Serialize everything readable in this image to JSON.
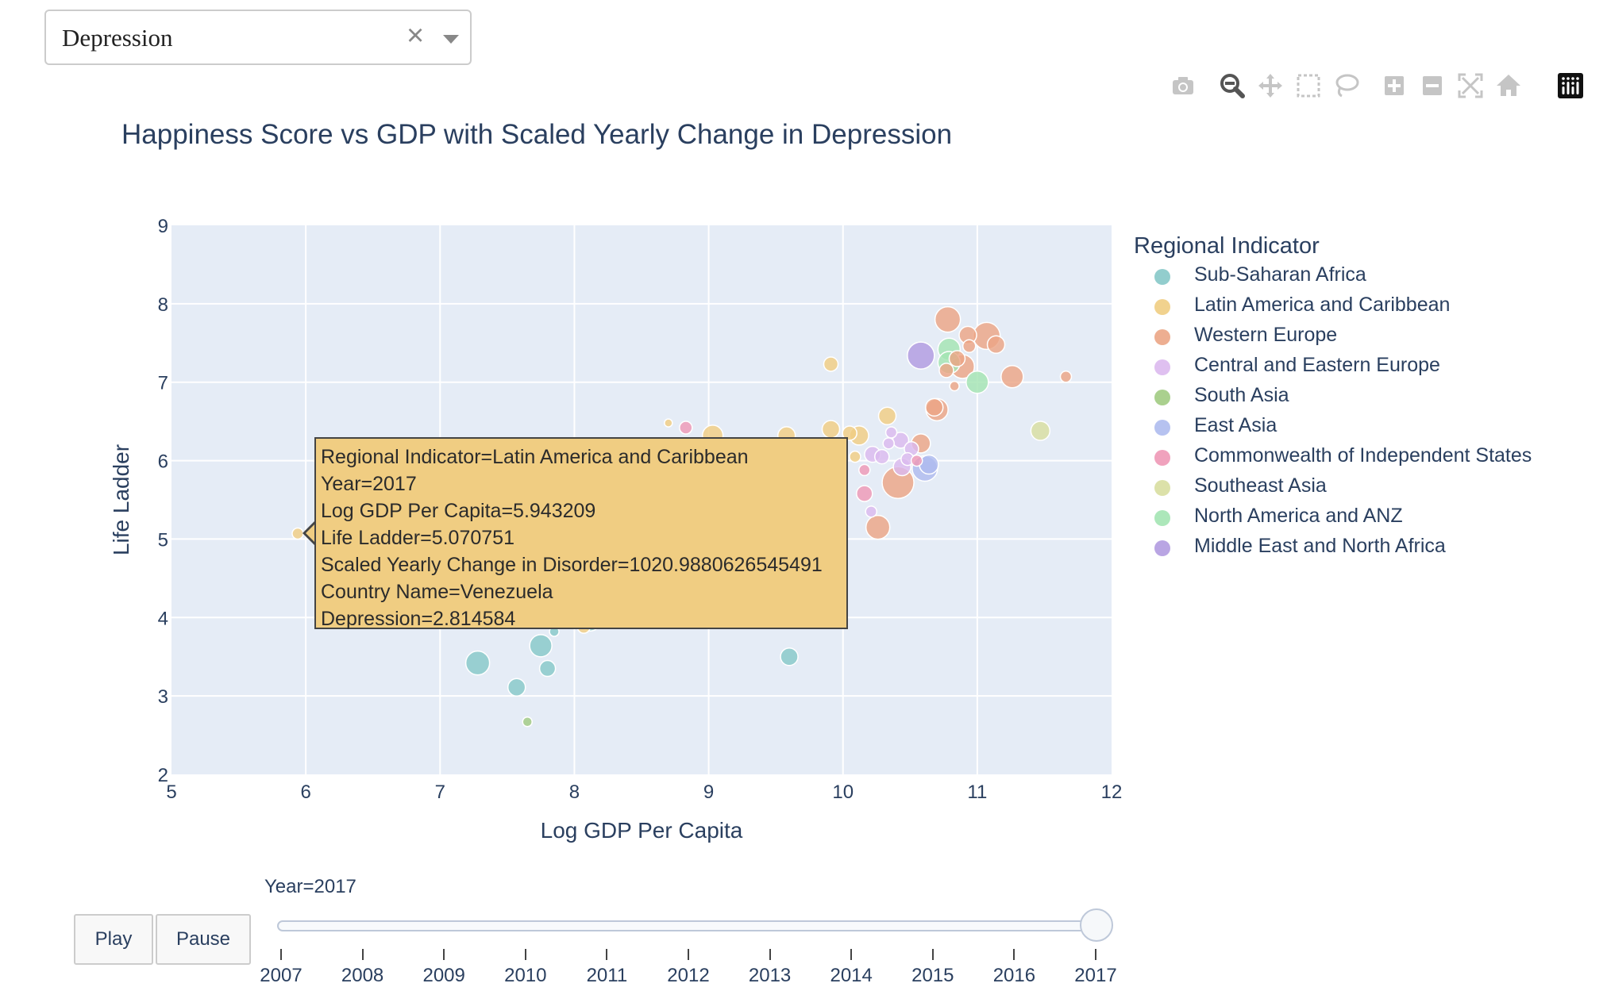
{
  "dropdown": {
    "value": "Depression"
  },
  "modebar": [
    "camera-icon",
    "zoom-icon",
    "pan-icon",
    "box-select-icon",
    "lasso-select-icon",
    "zoom-in-icon",
    "zoom-out-icon",
    "autoscale-icon",
    "reset-axes-icon",
    "plotly-logo-icon"
  ],
  "colors": {
    "Sub-Saharan Africa": "#86c8c8",
    "Latin America and Caribbean": "#f0cd82",
    "Western Europe": "#eba585",
    "Central and Eastern Europe": "#dbb9ee",
    "South Asia": "#a1cb82",
    "East Asia": "#aebbee",
    "Commonwealth of Independent States": "#ee98b6",
    "Southeast Asia": "#d8dea0",
    "North America and ANZ": "#a3e4b2",
    "Middle East and North Africa": "#b19be0"
  },
  "legend": {
    "title": "Regional Indicator",
    "items": [
      "Sub-Saharan Africa",
      "Latin America and Caribbean",
      "Western Europe",
      "Central and Eastern Europe",
      "South Asia",
      "East Asia",
      "Commonwealth of Independent States",
      "Southeast Asia",
      "North America and ANZ",
      "Middle East and North Africa"
    ]
  },
  "tooltip": {
    "lines": [
      "Regional Indicator=Latin America and Caribbean",
      "Year=2017",
      "Log GDP Per Capita=5.943209",
      "Life Ladder=5.070751",
      "Scaled Yearly Change in Disorder=1020.9880626545491",
      "Country Name=Venezuela",
      "Depression=2.814584"
    ]
  },
  "controls": {
    "play": "Play",
    "pause": "Pause"
  },
  "slider": {
    "label": "Year=2017",
    "years": [
      "2007",
      "2008",
      "2009",
      "2010",
      "2011",
      "2012",
      "2013",
      "2014",
      "2015",
      "2016",
      "2017"
    ],
    "selected": "2017"
  },
  "chart_data": {
    "type": "scatter",
    "title": "Happiness Score vs GDP with Scaled Yearly Change in Depression",
    "xlabel": "Log GDP Per Capita",
    "ylabel": "Life Ladder",
    "xlim": [
      5,
      12
    ],
    "ylim": [
      2,
      9
    ],
    "xticks": [
      5,
      6,
      7,
      8,
      9,
      10,
      11,
      12
    ],
    "yticks": [
      2,
      3,
      4,
      5,
      6,
      7,
      8,
      9
    ],
    "grid": true,
    "legend_position": "right",
    "points": [
      {
        "region": "Sub-Saharan Africa",
        "x": 7.28,
        "y": 3.42,
        "s": 15
      },
      {
        "region": "Sub-Saharan Africa",
        "x": 7.57,
        "y": 3.11,
        "s": 11
      },
      {
        "region": "Sub-Saharan Africa",
        "x": 7.75,
        "y": 3.64,
        "s": 14
      },
      {
        "region": "Sub-Saharan Africa",
        "x": 7.8,
        "y": 3.35,
        "s": 10
      },
      {
        "region": "Sub-Saharan Africa",
        "x": 7.85,
        "y": 3.82,
        "s": 6
      },
      {
        "region": "Sub-Saharan Africa",
        "x": 7.65,
        "y": 4.05,
        "s": 8
      },
      {
        "region": "Sub-Saharan Africa",
        "x": 8.12,
        "y": 3.95,
        "s": 12
      },
      {
        "region": "Sub-Saharan Africa",
        "x": 9.6,
        "y": 3.5,
        "s": 11
      },
      {
        "region": "South Asia",
        "x": 7.65,
        "y": 2.67,
        "s": 6
      },
      {
        "region": "Latin America and Caribbean",
        "x": 5.94,
        "y": 5.07,
        "s": 7
      },
      {
        "region": "Latin America and Caribbean",
        "x": 8.07,
        "y": 3.88,
        "s": 8
      },
      {
        "region": "Latin America and Caribbean",
        "x": 8.7,
        "y": 6.48,
        "s": 5
      },
      {
        "region": "Latin America and Caribbean",
        "x": 9.03,
        "y": 6.32,
        "s": 13
      },
      {
        "region": "Latin America and Caribbean",
        "x": 9.58,
        "y": 6.32,
        "s": 11
      },
      {
        "region": "Latin America and Caribbean",
        "x": 9.91,
        "y": 6.4,
        "s": 11
      },
      {
        "region": "Latin America and Caribbean",
        "x": 10.05,
        "y": 6.35,
        "s": 9
      },
      {
        "region": "Latin America and Caribbean",
        "x": 10.12,
        "y": 6.32,
        "s": 12
      },
      {
        "region": "Latin America and Caribbean",
        "x": 10.33,
        "y": 6.57,
        "s": 11
      },
      {
        "region": "Latin America and Caribbean",
        "x": 9.91,
        "y": 7.23,
        "s": 9
      },
      {
        "region": "Latin America and Caribbean",
        "x": 10.09,
        "y": 6.05,
        "s": 7
      },
      {
        "region": "Commonwealth of Independent States",
        "x": 8.83,
        "y": 6.42,
        "s": 8
      },
      {
        "region": "Commonwealth of Independent States",
        "x": 10.16,
        "y": 5.88,
        "s": 7
      },
      {
        "region": "Commonwealth of Independent States",
        "x": 10.16,
        "y": 5.58,
        "s": 10
      },
      {
        "region": "Commonwealth of Independent States",
        "x": 10.55,
        "y": 6.0,
        "s": 7
      },
      {
        "region": "Central and Eastern Europe",
        "x": 10.22,
        "y": 6.08,
        "s": 10
      },
      {
        "region": "Central and Eastern Europe",
        "x": 10.29,
        "y": 6.05,
        "s": 9
      },
      {
        "region": "Central and Eastern Europe",
        "x": 10.34,
        "y": 6.22,
        "s": 7
      },
      {
        "region": "Central and Eastern Europe",
        "x": 10.36,
        "y": 6.36,
        "s": 7
      },
      {
        "region": "Central and Eastern Europe",
        "x": 10.43,
        "y": 6.26,
        "s": 10
      },
      {
        "region": "Central and Eastern Europe",
        "x": 10.48,
        "y": 6.02,
        "s": 8
      },
      {
        "region": "Central and Eastern Europe",
        "x": 10.51,
        "y": 6.15,
        "s": 9
      },
      {
        "region": "Central and Eastern Europe",
        "x": 10.44,
        "y": 5.92,
        "s": 11
      },
      {
        "region": "Central and Eastern Europe",
        "x": 10.21,
        "y": 5.35,
        "s": 7
      },
      {
        "region": "Western Europe",
        "x": 10.41,
        "y": 5.72,
        "s": 20
      },
      {
        "region": "Western Europe",
        "x": 10.26,
        "y": 5.15,
        "s": 15
      },
      {
        "region": "Western Europe",
        "x": 10.58,
        "y": 6.22,
        "s": 12
      },
      {
        "region": "Western Europe",
        "x": 10.7,
        "y": 6.65,
        "s": 14
      },
      {
        "region": "Western Europe",
        "x": 10.68,
        "y": 6.68,
        "s": 11
      },
      {
        "region": "Western Europe",
        "x": 10.78,
        "y": 7.8,
        "s": 16
      },
      {
        "region": "Western Europe",
        "x": 10.93,
        "y": 7.6,
        "s": 11
      },
      {
        "region": "Western Europe",
        "x": 10.94,
        "y": 7.46,
        "s": 8
      },
      {
        "region": "Western Europe",
        "x": 11.07,
        "y": 7.59,
        "s": 17
      },
      {
        "region": "Western Europe",
        "x": 11.14,
        "y": 7.48,
        "s": 11
      },
      {
        "region": "Western Europe",
        "x": 10.85,
        "y": 7.3,
        "s": 10
      },
      {
        "region": "Western Europe",
        "x": 10.89,
        "y": 7.2,
        "s": 15
      },
      {
        "region": "Western Europe",
        "x": 10.77,
        "y": 7.15,
        "s": 9
      },
      {
        "region": "Western Europe",
        "x": 10.83,
        "y": 6.95,
        "s": 6
      },
      {
        "region": "Western Europe",
        "x": 11.26,
        "y": 7.07,
        "s": 14
      },
      {
        "region": "Western Europe",
        "x": 11.66,
        "y": 7.07,
        "s": 7
      },
      {
        "region": "East Asia",
        "x": 10.61,
        "y": 5.9,
        "s": 16
      },
      {
        "region": "East Asia",
        "x": 10.64,
        "y": 5.95,
        "s": 12
      },
      {
        "region": "Middle East and North Africa",
        "x": 10.58,
        "y": 7.34,
        "s": 17
      },
      {
        "region": "North America and ANZ",
        "x": 10.79,
        "y": 7.42,
        "s": 14
      },
      {
        "region": "North America and ANZ",
        "x": 10.79,
        "y": 7.25,
        "s": 14
      },
      {
        "region": "North America and ANZ",
        "x": 11.0,
        "y": 7.0,
        "s": 14
      },
      {
        "region": "Southeast Asia",
        "x": 11.47,
        "y": 6.38,
        "s": 12
      }
    ]
  }
}
